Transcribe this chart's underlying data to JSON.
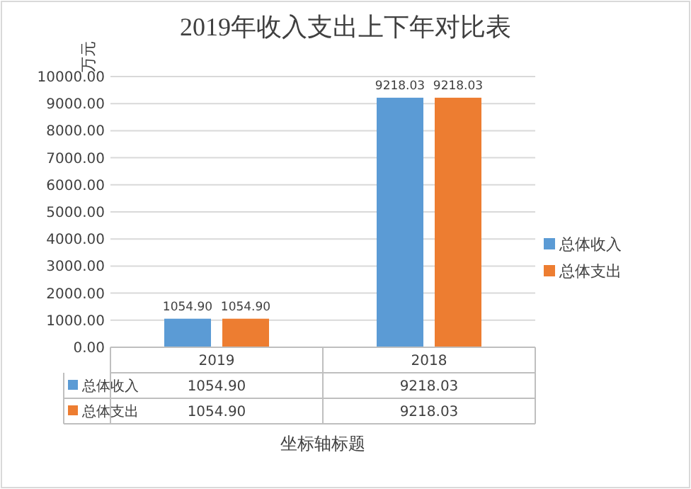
{
  "chart_data": {
    "type": "bar",
    "title": "2019年收入支出上下年对比表",
    "ylabel": "万元",
    "xlabel": "坐标轴标题",
    "categories": [
      "2019",
      "2018"
    ],
    "series": [
      {
        "name": "总体收入",
        "color": "#5b9bd5",
        "values": [
          1054.9,
          9218.03
        ],
        "value_labels": [
          "1054.90",
          "9218.03"
        ]
      },
      {
        "name": "总体支出",
        "color": "#ed7d31",
        "values": [
          1054.9,
          9218.03
        ],
        "value_labels": [
          "1054.90",
          "9218.03"
        ]
      }
    ],
    "ylim": [
      0,
      10000
    ],
    "yticks": [
      {
        "value": 0,
        "label": "0.00"
      },
      {
        "value": 1000,
        "label": "1000.00"
      },
      {
        "value": 2000,
        "label": "2000.00"
      },
      {
        "value": 3000,
        "label": "3000.00"
      },
      {
        "value": 4000,
        "label": "4000.00"
      },
      {
        "value": 5000,
        "label": "5000.00"
      },
      {
        "value": 6000,
        "label": "6000.00"
      },
      {
        "value": 7000,
        "label": "7000.00"
      },
      {
        "value": 8000,
        "label": "8000.00"
      },
      {
        "value": 9000,
        "label": "9000.00"
      },
      {
        "value": 10000,
        "label": "10000.00"
      }
    ],
    "grid": "y",
    "legend": "right"
  }
}
